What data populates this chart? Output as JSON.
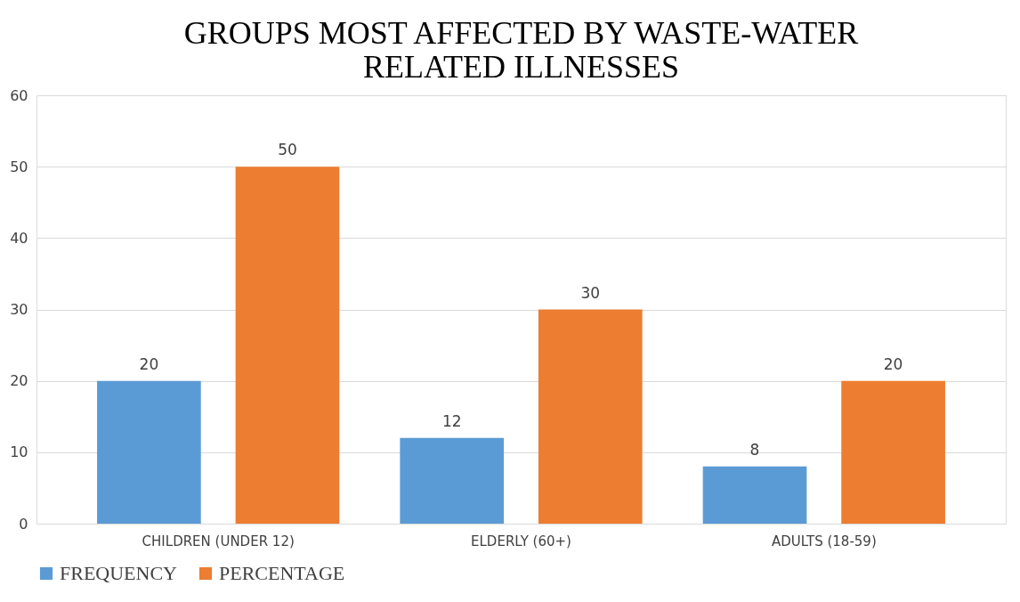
{
  "chart_data": {
    "type": "bar",
    "title": "GROUPS MOST AFFECTED BY WASTE-WATER RELATED ILLNESSES",
    "categories": [
      "CHILDREN (UNDER 12)",
      "ELDERLY (60+)",
      "ADULTS (18-59)"
    ],
    "series": [
      {
        "name": "FREQUENCY",
        "color": "#5b9bd5",
        "values": [
          20,
          12,
          8
        ]
      },
      {
        "name": "PERCENTAGE",
        "color": "#ed7d31",
        "values": [
          50,
          30,
          20
        ]
      }
    ],
    "ylim": [
      0,
      60
    ],
    "yticks": [
      0,
      10,
      20,
      30,
      40,
      50,
      60
    ],
    "grid": "y",
    "legend": "bottom",
    "data_labels": true
  }
}
